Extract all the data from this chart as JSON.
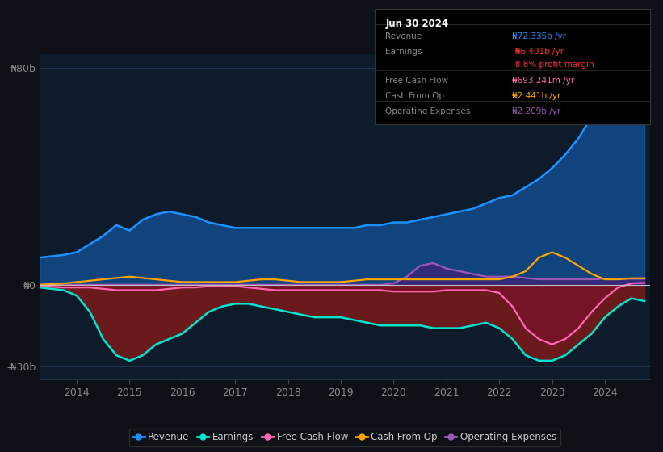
{
  "background_color": "#0d1117",
  "plot_bg_color": "#0d1b2a",
  "grid_color": "#2a4060",
  "zero_line_color": "#c0c0c0",
  "ylim": [
    -35,
    85
  ],
  "yticks": [
    -30,
    0,
    80
  ],
  "ytick_labels": [
    "-₦30b",
    "₦0",
    "₦80b"
  ],
  "xlim": [
    2013.3,
    2024.85
  ],
  "xticks": [
    2014,
    2015,
    2016,
    2017,
    2018,
    2019,
    2020,
    2021,
    2022,
    2023,
    2024
  ],
  "title_box": {
    "date": "Jun 30 2024",
    "rows": [
      {
        "label": "Revenue",
        "value": "₦72.335b /yr",
        "value_color": "#1e90ff"
      },
      {
        "label": "Earnings",
        "value": "-₦6.401b /yr",
        "value_color": "#ff3333"
      },
      {
        "label": "",
        "value": "-8.8% profit margin",
        "value_color": "#ff3333"
      },
      {
        "label": "Free Cash Flow",
        "value": "₦693.241m /yr",
        "value_color": "#ff69b4"
      },
      {
        "label": "Cash From Op",
        "value": "₦2.441b /yr",
        "value_color": "#ffa500"
      },
      {
        "label": "Operating Expenses",
        "value": "₦2.209b /yr",
        "value_color": "#9b59b6"
      }
    ]
  },
  "series": {
    "revenue": {
      "color": "#1e90ff",
      "fill_color": "#1565c0",
      "fill_alpha": 0.55,
      "linewidth": 1.8,
      "x": [
        2013.3,
        2013.75,
        2014.0,
        2014.25,
        2014.5,
        2014.75,
        2015.0,
        2015.25,
        2015.5,
        2015.75,
        2016.0,
        2016.25,
        2016.5,
        2016.75,
        2017.0,
        2017.25,
        2017.5,
        2017.75,
        2018.0,
        2018.25,
        2018.5,
        2018.75,
        2019.0,
        2019.25,
        2019.5,
        2019.75,
        2020.0,
        2020.25,
        2020.5,
        2020.75,
        2021.0,
        2021.25,
        2021.5,
        2021.75,
        2022.0,
        2022.25,
        2022.5,
        2022.75,
        2023.0,
        2023.25,
        2023.5,
        2023.75,
        2024.0,
        2024.25,
        2024.5,
        2024.75
      ],
      "y": [
        10,
        11,
        12,
        15,
        18,
        22,
        20,
        24,
        26,
        27,
        26,
        25,
        23,
        22,
        21,
        21,
        21,
        21,
        21,
        21,
        21,
        21,
        21,
        21,
        22,
        22,
        23,
        23,
        24,
        25,
        26,
        27,
        28,
        30,
        32,
        33,
        36,
        39,
        43,
        48,
        54,
        62,
        70,
        75,
        78,
        72
      ]
    },
    "earnings": {
      "color": "#00e5cc",
      "fill_color": "#7b1a1a",
      "fill_alpha": 0.85,
      "linewidth": 1.8,
      "x": [
        2013.3,
        2013.75,
        2014.0,
        2014.25,
        2014.5,
        2014.75,
        2015.0,
        2015.25,
        2015.5,
        2015.75,
        2016.0,
        2016.25,
        2016.5,
        2016.75,
        2017.0,
        2017.25,
        2017.5,
        2017.75,
        2018.0,
        2018.25,
        2018.5,
        2018.75,
        2019.0,
        2019.25,
        2019.5,
        2019.75,
        2020.0,
        2020.25,
        2020.5,
        2020.75,
        2021.0,
        2021.25,
        2021.5,
        2021.75,
        2022.0,
        2022.25,
        2022.5,
        2022.75,
        2023.0,
        2023.25,
        2023.5,
        2023.75,
        2024.0,
        2024.25,
        2024.5,
        2024.75
      ],
      "y": [
        -1,
        -2,
        -4,
        -10,
        -20,
        -26,
        -28,
        -26,
        -22,
        -20,
        -18,
        -14,
        -10,
        -8,
        -7,
        -7,
        -8,
        -9,
        -10,
        -11,
        -12,
        -12,
        -12,
        -13,
        -14,
        -15,
        -15,
        -15,
        -15,
        -16,
        -16,
        -16,
        -15,
        -14,
        -16,
        -20,
        -26,
        -28,
        -28,
        -26,
        -22,
        -18,
        -12,
        -8,
        -5,
        -6
      ]
    },
    "free_cash_flow": {
      "color": "#ff69b4",
      "fill_color": "#8b0a3a",
      "fill_alpha": 0.4,
      "linewidth": 1.6,
      "x": [
        2013.3,
        2013.75,
        2014.0,
        2014.25,
        2014.5,
        2014.75,
        2015.0,
        2015.25,
        2015.5,
        2015.75,
        2016.0,
        2016.25,
        2016.5,
        2016.75,
        2017.0,
        2017.25,
        2017.5,
        2017.75,
        2018.0,
        2018.25,
        2018.5,
        2018.75,
        2019.0,
        2019.25,
        2019.5,
        2019.75,
        2020.0,
        2020.25,
        2020.5,
        2020.75,
        2021.0,
        2021.25,
        2021.5,
        2021.75,
        2022.0,
        2022.25,
        2022.5,
        2022.75,
        2023.0,
        2023.25,
        2023.5,
        2023.75,
        2024.0,
        2024.25,
        2024.5,
        2024.75
      ],
      "y": [
        -0.5,
        -1,
        -1,
        -1,
        -1.5,
        -2,
        -2,
        -2,
        -2,
        -1.5,
        -1,
        -1,
        -0.5,
        -0.5,
        -0.5,
        -1,
        -1.5,
        -2,
        -2,
        -2,
        -2,
        -2,
        -2,
        -2,
        -2,
        -2,
        -2.5,
        -2.5,
        -2.5,
        -2.5,
        -2,
        -2,
        -2,
        -2,
        -3,
        -8,
        -16,
        -20,
        -22,
        -20,
        -16,
        -10,
        -5,
        -1,
        0.5,
        0.7
      ]
    },
    "cash_from_op": {
      "color": "#ffa500",
      "linewidth": 1.6,
      "x": [
        2013.3,
        2013.75,
        2014.0,
        2014.25,
        2014.5,
        2014.75,
        2015.0,
        2015.25,
        2015.5,
        2015.75,
        2016.0,
        2016.25,
        2016.5,
        2016.75,
        2017.0,
        2017.25,
        2017.5,
        2017.75,
        2018.0,
        2018.25,
        2018.5,
        2018.75,
        2019.0,
        2019.25,
        2019.5,
        2019.75,
        2020.0,
        2020.25,
        2020.5,
        2020.75,
        2021.0,
        2021.25,
        2021.5,
        2021.75,
        2022.0,
        2022.25,
        2022.5,
        2022.75,
        2023.0,
        2023.25,
        2023.5,
        2023.75,
        2024.0,
        2024.25,
        2024.5,
        2024.75
      ],
      "y": [
        0,
        0.5,
        1,
        1.5,
        2,
        2.5,
        3,
        2.5,
        2,
        1.5,
        1,
        1,
        1,
        1,
        1,
        1.5,
        2,
        2,
        1.5,
        1,
        1,
        1,
        1,
        1.5,
        2,
        2,
        2,
        2,
        2,
        2,
        2,
        2,
        2,
        2,
        2,
        3,
        5,
        10,
        12,
        10,
        7,
        4,
        2,
        2,
        2.4,
        2.4
      ]
    },
    "operating_expenses": {
      "color": "#9b59b6",
      "fill_color": "#4a1a7a",
      "fill_alpha": 0.6,
      "linewidth": 1.6,
      "x": [
        2013.3,
        2013.75,
        2014.0,
        2014.25,
        2014.5,
        2014.75,
        2015.0,
        2015.25,
        2015.5,
        2015.75,
        2016.0,
        2016.25,
        2016.5,
        2016.75,
        2017.0,
        2017.25,
        2017.5,
        2017.75,
        2018.0,
        2018.25,
        2018.5,
        2018.75,
        2019.0,
        2019.25,
        2019.5,
        2019.75,
        2020.0,
        2020.25,
        2020.5,
        2020.75,
        2021.0,
        2021.25,
        2021.5,
        2021.75,
        2022.0,
        2022.25,
        2022.5,
        2022.75,
        2023.0,
        2023.25,
        2023.5,
        2023.75,
        2024.0,
        2024.25,
        2024.5,
        2024.75
      ],
      "y": [
        0,
        0,
        0,
        0,
        0,
        0,
        0,
        0,
        0,
        0,
        0,
        0,
        0,
        0,
        0,
        0,
        0,
        0,
        0,
        0,
        0,
        0,
        0,
        0,
        0,
        0,
        0.5,
        3,
        7,
        8,
        6,
        5,
        4,
        3,
        3,
        3,
        2.5,
        2,
        2,
        2,
        2,
        2,
        2.2,
        2.2,
        2.2,
        2.2
      ]
    }
  },
  "legend": [
    {
      "label": "Revenue",
      "color": "#1e90ff"
    },
    {
      "label": "Earnings",
      "color": "#00e5cc"
    },
    {
      "label": "Free Cash Flow",
      "color": "#ff69b4"
    },
    {
      "label": "Cash From Op",
      "color": "#ffa500"
    },
    {
      "label": "Operating Expenses",
      "color": "#9b59b6"
    }
  ]
}
